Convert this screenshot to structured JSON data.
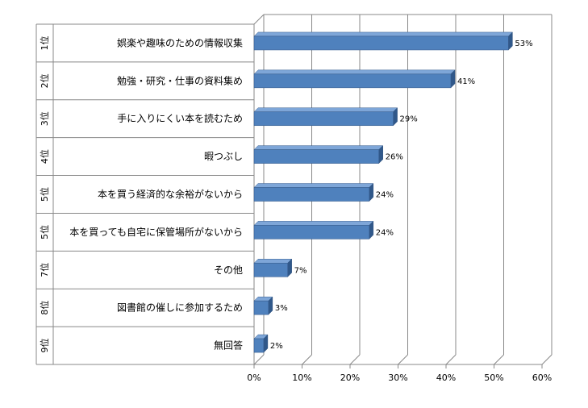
{
  "chart_data": {
    "type": "bar",
    "orientation": "horizontal",
    "style": "3d",
    "bar_color": "#4f81bd",
    "ranks": [
      "1位",
      "2位",
      "3位",
      "4位",
      "5位",
      "5位",
      "7位",
      "8位",
      "9位"
    ],
    "categories": [
      "娯楽や趣味のための情報収集",
      "勉強・研究・仕事の資料集め",
      "手に入りにくい本を読むため",
      "暇つぶし",
      "本を買う経済的な余裕がないから",
      "本を買っても自宅に保管場所がないから",
      "その他",
      "図書館の催しに参加するため",
      "無回答"
    ],
    "values": [
      53,
      41,
      29,
      26,
      24,
      24,
      7,
      3,
      2
    ],
    "data_labels": [
      "53%",
      "41%",
      "29%",
      "26%",
      "24%",
      "24%",
      "7%",
      "3%",
      "2%"
    ],
    "xlim": [
      0,
      60
    ],
    "x_ticks": [
      0,
      10,
      20,
      30,
      40,
      50,
      60
    ],
    "x_tick_labels": [
      "0%",
      "10%",
      "20%",
      "30%",
      "40%",
      "50%",
      "60%"
    ],
    "grid": true,
    "legend": "none"
  }
}
